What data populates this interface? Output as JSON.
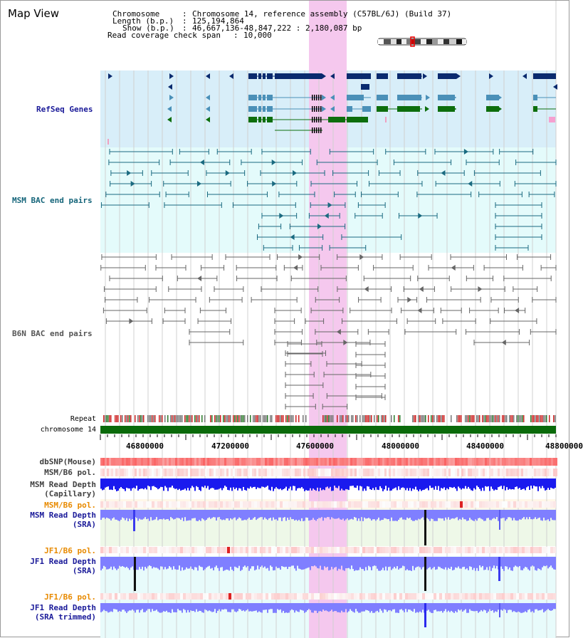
{
  "header": {
    "title": "Map View",
    "chromosome_label": "Chromosome",
    "chromosome_value": "Chromosome 14, reference assembly (C57BL/6J) (Build 37)",
    "length_label": "Length (b.p.)",
    "length_value": "125,194,864",
    "show_label": "Show (b.p.)",
    "show_value": "46,667,136-48,847,222 : 2,180,087 bp",
    "coverage_label": "Read coverage check span",
    "coverage_value": "10,000"
  },
  "tracks": {
    "refseq": "RefSeq Genes",
    "msm_bac": "MSM BAC end pairs",
    "b6n_bac": "B6N BAC end pairs",
    "repeat": "Repeat",
    "chromosome": "chromosome 14",
    "dbsnp": "dbSNP(Mouse)",
    "msm_b6_pol_1": "MSM/B6 pol.",
    "msm_depth_cap_1": "MSM Read Depth",
    "msm_depth_cap_2": "(Capillary)",
    "msm_b6_pol_2": "MSM/B6 pol.",
    "msm_depth_sra_1": "MSM Read Depth",
    "msm_depth_sra_2": "(SRA)",
    "jf1_b6_pol_1": "JF1/B6 pol.",
    "jf1_depth_sra_1": "JF1 Read Depth",
    "jf1_depth_sra_2": "(SRA)",
    "jf1_b6_pol_2": "JF1/B6 pol.",
    "jf1_depth_trim_1": "JF1 Read Depth",
    "jf1_depth_trim_2": "(SRA trimmed)"
  },
  "axis": {
    "ticks": [
      "46800000",
      "47200000",
      "47600000",
      "48000000",
      "48400000",
      "48800000"
    ]
  },
  "colors": {
    "refseq_dark": "#0a2a6e",
    "refseq_mid": "#4a90b8",
    "refseq_green": "#0d6e0d",
    "bac_teal": "#1a6a80",
    "bac_gray": "#666666",
    "highlight": "#f5c8ee",
    "chromosome_bar": "#0a6a0a",
    "depth_blue": "#1a1aee",
    "depth_light": "#7f7fff"
  }
}
